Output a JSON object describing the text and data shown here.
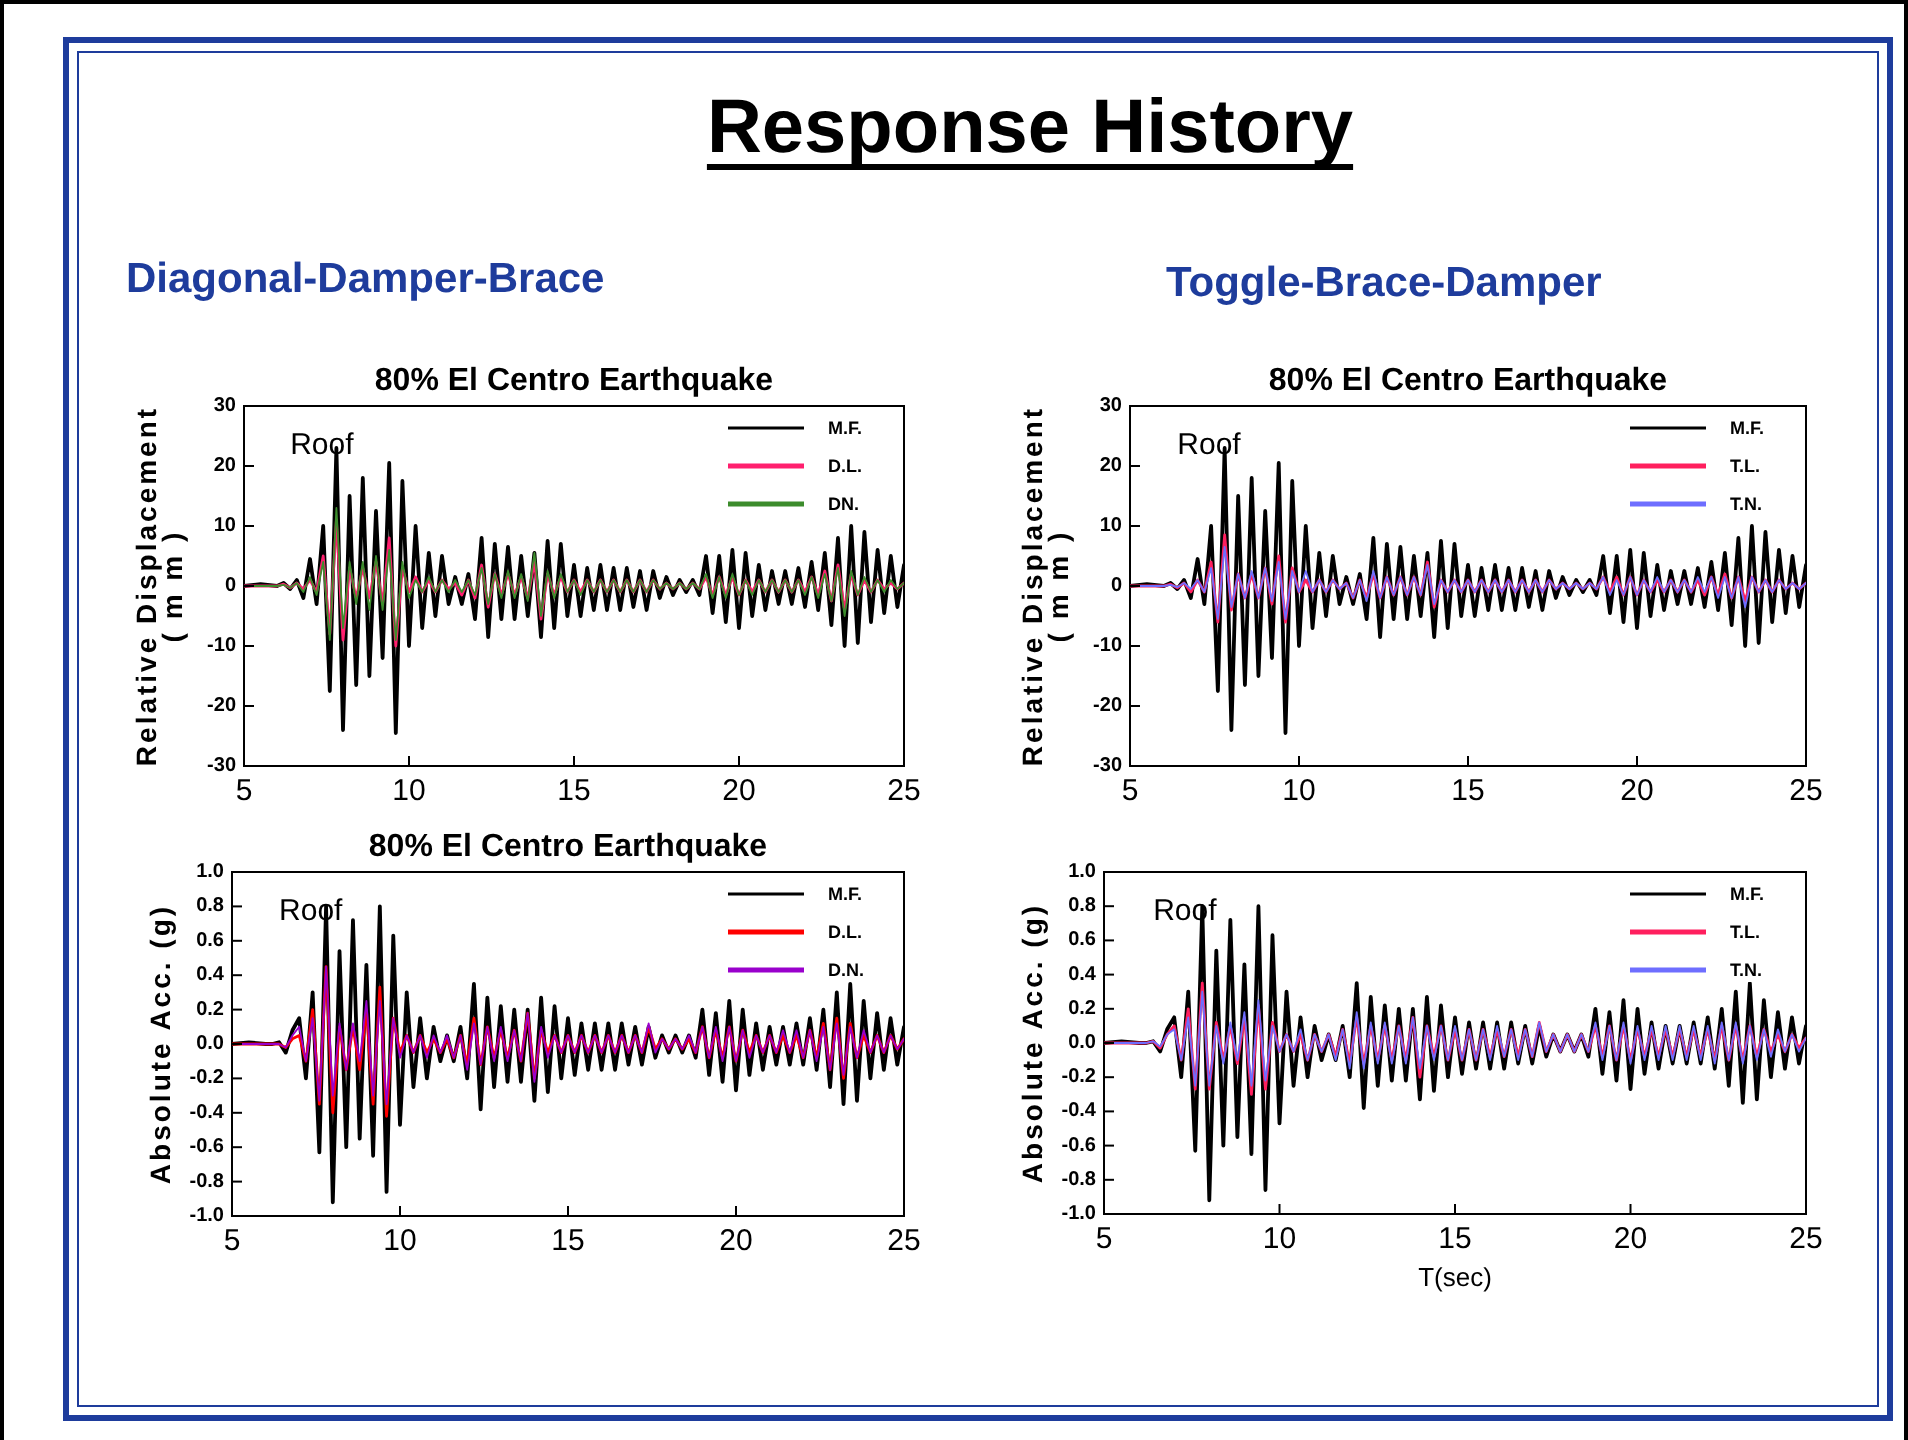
{
  "chart_data": [
    {
      "type": "other",
      "title": "Response History",
      "annotations": [
        "Diagonal-Damper-Brace",
        "Toggle-Brace-Damper"
      ]
    },
    {
      "type": "line",
      "title": "80% El Centro Earthquake",
      "ylabel": "Relative Displacement\n( m m )",
      "annotations": [
        "Roof"
      ],
      "legend": "top right",
      "xlim": [
        5,
        25
      ],
      "xticks": [
        5,
        10,
        15,
        20,
        25
      ],
      "ylim": [
        -30,
        30
      ],
      "yticks": [
        -30,
        -20,
        -10,
        0,
        10,
        20,
        30
      ],
      "x": [
        5,
        5.5,
        6,
        6.2,
        6.4,
        6.6,
        6.8,
        7,
        7.2,
        7.4,
        7.6,
        7.8,
        8,
        8.2,
        8.4,
        8.6,
        8.8,
        9,
        9.2,
        9.4,
        9.6,
        9.8,
        10,
        10.2,
        10.4,
        10.6,
        10.8,
        11,
        11.2,
        11.4,
        11.6,
        11.8,
        12,
        12.2,
        12.4,
        12.6,
        12.8,
        13,
        13.2,
        13.4,
        13.6,
        13.8,
        14,
        14.2,
        14.4,
        14.6,
        14.8,
        15,
        15.2,
        15.4,
        15.6,
        15.8,
        16,
        16.2,
        16.4,
        16.6,
        16.8,
        17,
        17.2,
        17.4,
        17.6,
        17.8,
        18,
        18.2,
        18.4,
        18.6,
        18.8,
        19,
        19.2,
        19.4,
        19.6,
        19.8,
        20,
        20.2,
        20.4,
        20.6,
        20.8,
        21,
        21.2,
        21.4,
        21.6,
        21.8,
        22,
        22.2,
        22.4,
        22.6,
        22.8,
        23,
        23.2,
        23.4,
        23.6,
        23.8,
        24,
        24.2,
        24.4,
        24.6,
        24.8,
        25
      ],
      "series": [
        {
          "name": "M.F.",
          "color": "#000000",
          "values": [
            0,
            0.3,
            0,
            0.5,
            -0.5,
            1,
            -2,
            4.5,
            -3,
            10,
            -17.5,
            23,
            -24,
            15,
            -16.5,
            18,
            -15,
            12.5,
            -12,
            20.5,
            -24.5,
            17.5,
            -10,
            10,
            -7,
            5.5,
            -5,
            5,
            -3,
            1.5,
            -3,
            2,
            -5.5,
            8,
            -8.5,
            7,
            -5.5,
            6.5,
            -5.5,
            5,
            -5,
            5.5,
            -8.5,
            7.5,
            -7,
            7,
            -5,
            3.5,
            -5,
            3,
            -4,
            3.5,
            -4,
            3,
            -4,
            3,
            -3.5,
            2.5,
            -4,
            2.5,
            -2,
            1.5,
            -1.5,
            1,
            -1,
            1,
            -1.5,
            5,
            -4.5,
            5,
            -6,
            6,
            -7,
            5.5,
            -5,
            3.5,
            -4,
            2.5,
            -3,
            2.5,
            -3,
            3,
            -3.5,
            4,
            -4,
            5.5,
            -6.5,
            8,
            -10,
            10,
            -9.5,
            9,
            -6,
            6,
            -4.5,
            5,
            -3.5,
            3.5
          ]
        },
        {
          "name": "D.L.",
          "color": "#ff1f6e",
          "values": [
            0,
            0,
            0,
            0.3,
            -0.3,
            0.5,
            -0.5,
            1,
            -1,
            5,
            -8,
            11,
            -9,
            3,
            -2,
            3,
            -2,
            4,
            -3,
            8,
            -10,
            3,
            -1,
            1.5,
            -1,
            1,
            -1,
            1,
            -0.5,
            0.5,
            -1.5,
            1,
            -2,
            3.5,
            -3.5,
            2,
            -1.5,
            2,
            -1.5,
            1.5,
            -2,
            4,
            -5.5,
            2,
            -1.5,
            1.5,
            -1,
            1,
            -1,
            1,
            -1,
            1,
            -1,
            1,
            -1,
            1,
            -1,
            1,
            -1,
            1,
            -0.5,
            0.5,
            -0.5,
            0.5,
            -0.5,
            0.5,
            -0.5,
            1.5,
            -1.5,
            1.5,
            -1.5,
            1.5,
            -1.5,
            1,
            -1,
            1,
            -1,
            1,
            -1,
            1,
            -1,
            1,
            -1,
            1.5,
            -1.5,
            2.5,
            -2.5,
            3.5,
            -4,
            2,
            -1.5,
            1,
            -1,
            1,
            -0.5,
            0.5,
            -0.5,
            0.5
          ]
        },
        {
          "name": "DN.",
          "color": "#3c8c2c",
          "values": [
            0,
            0,
            0,
            0.2,
            -0.3,
            0.5,
            -1,
            1.5,
            -1.5,
            4,
            -9,
            13,
            -7,
            4,
            -3,
            4,
            -4,
            5,
            -4,
            6,
            -9,
            4,
            -2,
            1,
            -1,
            1.5,
            -1,
            1,
            -1,
            1,
            -1,
            1,
            -1.5,
            3,
            -3,
            2,
            -2,
            2.5,
            -2,
            2,
            -2.5,
            5.5,
            -5,
            2.5,
            -2,
            2,
            -1,
            1,
            -1.5,
            1,
            -1,
            1,
            -1,
            1,
            -1,
            1,
            -1,
            1,
            -1,
            1,
            -0.5,
            0.5,
            -0.5,
            0.5,
            -0.5,
            0.5,
            -0.5,
            2,
            -2,
            1.5,
            -2,
            2,
            -1.5,
            1,
            -1.5,
            1,
            -1,
            1,
            -1,
            1,
            -1,
            1,
            -1.5,
            1.5,
            -2,
            2,
            -2.5,
            3,
            -5,
            2.5,
            -1.5,
            1.5,
            -1,
            1,
            -1,
            1,
            -0.5,
            0.5
          ]
        }
      ]
    },
    {
      "type": "line",
      "title": "80% El Centro Earthquake",
      "ylabel": "Relative Displacement\n( m m )",
      "annotations": [
        "Roof"
      ],
      "legend": "top right",
      "xlim": [
        5,
        25
      ],
      "xticks": [
        5,
        10,
        15,
        20,
        25
      ],
      "ylim": [
        -30,
        30
      ],
      "yticks": [
        -30,
        -20,
        -10,
        0,
        10,
        20,
        30
      ],
      "x": [
        5,
        5.5,
        6,
        6.2,
        6.4,
        6.6,
        6.8,
        7,
        7.2,
        7.4,
        7.6,
        7.8,
        8,
        8.2,
        8.4,
        8.6,
        8.8,
        9,
        9.2,
        9.4,
        9.6,
        9.8,
        10,
        10.2,
        10.4,
        10.6,
        10.8,
        11,
        11.2,
        11.4,
        11.6,
        11.8,
        12,
        12.2,
        12.4,
        12.6,
        12.8,
        13,
        13.2,
        13.4,
        13.6,
        13.8,
        14,
        14.2,
        14.4,
        14.6,
        14.8,
        15,
        15.2,
        15.4,
        15.6,
        15.8,
        16,
        16.2,
        16.4,
        16.6,
        16.8,
        17,
        17.2,
        17.4,
        17.6,
        17.8,
        18,
        18.2,
        18.4,
        18.6,
        18.8,
        19,
        19.2,
        19.4,
        19.6,
        19.8,
        20,
        20.2,
        20.4,
        20.6,
        20.8,
        21,
        21.2,
        21.4,
        21.6,
        21.8,
        22,
        22.2,
        22.4,
        22.6,
        22.8,
        23,
        23.2,
        23.4,
        23.6,
        23.8,
        24,
        24.2,
        24.4,
        24.6,
        24.8,
        25
      ],
      "series": [
        {
          "name": "M.F.",
          "color": "#000000",
          "values": [
            0,
            0.3,
            0,
            0.5,
            -0.5,
            1,
            -2,
            4.5,
            -3,
            10,
            -17.5,
            23,
            -24,
            15,
            -16.5,
            18,
            -15,
            12.5,
            -12,
            20.5,
            -24.5,
            17.5,
            -10,
            10,
            -7,
            5.5,
            -5,
            5,
            -3,
            1.5,
            -3,
            2,
            -5.5,
            8,
            -8.5,
            7,
            -5.5,
            6.5,
            -5.5,
            5,
            -5,
            5.5,
            -8.5,
            7.5,
            -7,
            7,
            -5,
            3.5,
            -5,
            3,
            -4,
            3.5,
            -4,
            3,
            -4,
            3,
            -3.5,
            2.5,
            -4,
            2.5,
            -2,
            1.5,
            -1.5,
            1,
            -1,
            1,
            -1.5,
            5,
            -4.5,
            5,
            -6,
            6,
            -7,
            5.5,
            -5,
            3.5,
            -4,
            2.5,
            -3,
            2.5,
            -3,
            3,
            -3.5,
            4,
            -4,
            5.5,
            -6.5,
            8,
            -10,
            10,
            -9.5,
            9,
            -6,
            6,
            -4.5,
            5,
            -3.5,
            3.5
          ]
        },
        {
          "name": "T.L.",
          "color": "#ff1f5e",
          "values": [
            0,
            0,
            0,
            0.3,
            -0.3,
            0.5,
            -1,
            1,
            -1,
            4,
            -6,
            8.5,
            -4,
            2,
            -2,
            2,
            -2,
            3,
            -3,
            5,
            -6,
            3,
            -1,
            1,
            -1,
            1,
            -1,
            1,
            -0.5,
            0.5,
            -2,
            1,
            -2,
            2,
            -2,
            1.5,
            -1.5,
            1.5,
            -1.5,
            1.5,
            -1.5,
            4,
            -3.5,
            1,
            -1,
            1,
            -1,
            1,
            -1,
            1,
            -1,
            1,
            -1,
            1,
            -1,
            1,
            -1,
            1,
            -1,
            1,
            -0.5,
            0.5,
            -0.5,
            0.5,
            -0.5,
            0.5,
            -0.5,
            1.5,
            -1,
            1.5,
            -1.5,
            1.5,
            -1.5,
            1,
            -1,
            1,
            -1,
            1,
            -1,
            1,
            -1,
            1,
            -1.5,
            1.5,
            -1.5,
            2,
            -2,
            1.5,
            -2.5,
            1.5,
            -1,
            1,
            -1,
            1,
            -0.5,
            0.5,
            -0.5,
            0.5
          ]
        },
        {
          "name": "T.N.",
          "color": "#6e6eff",
          "values": [
            0,
            0,
            0,
            0.2,
            -0.2,
            0.5,
            -0.5,
            1,
            -1,
            3,
            -5.5,
            6.5,
            -3.5,
            2,
            -2,
            2.5,
            -2,
            3,
            -2.5,
            4,
            -5.5,
            2.5,
            -1,
            2.5,
            -1,
            1,
            -1,
            1,
            -0.5,
            0.5,
            -2,
            1,
            -2.5,
            2.5,
            -2,
            1.5,
            -1.5,
            1.5,
            -1.5,
            1.5,
            -1.5,
            3.5,
            -3,
            1,
            -1,
            1,
            -1,
            1,
            -1,
            1,
            -1,
            1,
            -1,
            1,
            -1,
            1,
            -1,
            1,
            -1,
            1,
            -0.5,
            0.5,
            -0.5,
            0.5,
            -0.5,
            0.5,
            -0.5,
            1.5,
            -1.5,
            1,
            -1.5,
            1.5,
            -1.5,
            1,
            -1,
            1.5,
            -1,
            1,
            -1,
            1,
            -1,
            1.5,
            -1,
            1.5,
            -2,
            1.5,
            -2,
            1.5,
            -3.5,
            1.5,
            -1,
            1,
            -1,
            1,
            -0.5,
            0.5,
            -0.5,
            0.5
          ]
        }
      ]
    },
    {
      "type": "line",
      "title": "80% El Centro Earthquake",
      "ylabel": "Absolute Acc. (g)",
      "annotations": [
        "Roof"
      ],
      "legend": "top right",
      "xlim": [
        5,
        25
      ],
      "xticks": [
        5,
        10,
        15,
        20,
        25
      ],
      "ylim": [
        -1,
        1
      ],
      "yticks": [
        {
          "value": -1,
          "label": "-1.0"
        },
        -0.8,
        -0.6,
        -0.4,
        -0.2,
        {
          "value": 0,
          "label": "0.0"
        },
        0.2,
        0.4,
        0.6,
        0.8,
        {
          "value": 1,
          "label": "1.0"
        }
      ],
      "x": [
        5,
        5.5,
        6,
        6.2,
        6.4,
        6.6,
        6.8,
        7,
        7.2,
        7.4,
        7.6,
        7.8,
        8,
        8.2,
        8.4,
        8.6,
        8.8,
        9,
        9.2,
        9.4,
        9.6,
        9.8,
        10,
        10.2,
        10.4,
        10.6,
        10.8,
        11,
        11.2,
        11.4,
        11.6,
        11.8,
        12,
        12.2,
        12.4,
        12.6,
        12.8,
        13,
        13.2,
        13.4,
        13.6,
        13.8,
        14,
        14.2,
        14.4,
        14.6,
        14.8,
        15,
        15.2,
        15.4,
        15.6,
        15.8,
        16,
        16.2,
        16.4,
        16.6,
        16.8,
        17,
        17.2,
        17.4,
        17.6,
        17.8,
        18,
        18.2,
        18.4,
        18.6,
        18.8,
        19,
        19.2,
        19.4,
        19.6,
        19.8,
        20,
        20.2,
        20.4,
        20.6,
        20.8,
        21,
        21.2,
        21.4,
        21.6,
        21.8,
        22,
        22.2,
        22.4,
        22.6,
        22.8,
        23,
        23.2,
        23.4,
        23.6,
        23.8,
        24,
        24.2,
        24.4,
        24.6,
        24.8,
        25
      ],
      "series": [
        {
          "name": "M.F.",
          "color": "#000000",
          "values": [
            0,
            0.01,
            0,
            0,
            0.01,
            -0.05,
            0.08,
            0.15,
            -0.2,
            0.3,
            -0.63,
            0.8,
            -0.92,
            0.54,
            -0.6,
            0.72,
            -0.55,
            0.46,
            -0.65,
            0.8,
            -0.86,
            0.63,
            -0.47,
            0.3,
            -0.25,
            0.15,
            -0.2,
            0.1,
            -0.1,
            0.05,
            -0.1,
            0.1,
            -0.2,
            0.35,
            -0.38,
            0.27,
            -0.25,
            0.22,
            -0.22,
            0.2,
            -0.22,
            0.2,
            -0.33,
            0.27,
            -0.28,
            0.22,
            -0.2,
            0.15,
            -0.18,
            0.12,
            -0.15,
            0.12,
            -0.15,
            0.12,
            -0.15,
            0.12,
            -0.12,
            0.1,
            -0.12,
            0.1,
            -0.08,
            0.05,
            -0.05,
            0.05,
            -0.05,
            0.05,
            -0.08,
            0.2,
            -0.18,
            0.18,
            -0.22,
            0.25,
            -0.27,
            0.2,
            -0.18,
            0.12,
            -0.15,
            0.1,
            -0.12,
            0.1,
            -0.12,
            0.12,
            -0.12,
            0.15,
            -0.15,
            0.2,
            -0.25,
            0.3,
            -0.35,
            0.35,
            -0.33,
            0.25,
            -0.2,
            0.18,
            -0.15,
            0.15,
            -0.12,
            0.1
          ]
        },
        {
          "name": "D.L.",
          "color": "#ff0000",
          "values": [
            0,
            0,
            0,
            0,
            0,
            -0.02,
            0.03,
            0.05,
            -0.1,
            0.2,
            -0.35,
            0.45,
            -0.4,
            0.1,
            -0.15,
            0.1,
            -0.15,
            0.2,
            -0.35,
            0.33,
            -0.42,
            0.15,
            -0.05,
            0.05,
            -0.05,
            0.05,
            -0.05,
            0.03,
            -0.05,
            0.03,
            -0.08,
            0.05,
            -0.12,
            0.15,
            -0.12,
            0.1,
            -0.08,
            0.08,
            -0.08,
            0.08,
            -0.1,
            0.18,
            -0.2,
            0.08,
            -0.05,
            0.05,
            -0.05,
            0.05,
            -0.05,
            0.05,
            -0.05,
            0.05,
            -0.05,
            0.05,
            -0.05,
            0.05,
            -0.05,
            0.05,
            -0.05,
            0.1,
            -0.03,
            0.03,
            -0.03,
            0.03,
            -0.03,
            0.03,
            -0.05,
            0.1,
            -0.08,
            0.08,
            -0.08,
            0.1,
            -0.1,
            0.08,
            -0.05,
            0.05,
            -0.05,
            0.05,
            -0.05,
            0.05,
            -0.05,
            0.05,
            -0.08,
            0.08,
            -0.08,
            0.12,
            -0.15,
            0.15,
            -0.2,
            0.12,
            -0.08,
            0.05,
            -0.05,
            0.05,
            -0.05,
            0.05,
            -0.03,
            0.03
          ]
        },
        {
          "name": "D.N.",
          "color": "#9900cc",
          "values": [
            0,
            0,
            0,
            0,
            0,
            -0.02,
            0.05,
            0.1,
            -0.1,
            0.15,
            -0.33,
            0.45,
            -0.3,
            0.12,
            -0.15,
            0.12,
            -0.1,
            0.25,
            -0.3,
            0.25,
            -0.35,
            0.15,
            -0.08,
            0.05,
            -0.05,
            0.05,
            -0.08,
            0.05,
            -0.05,
            0.05,
            -0.08,
            0.05,
            -0.15,
            0.12,
            -0.12,
            0.1,
            -0.1,
            0.1,
            -0.1,
            0.08,
            -0.1,
            0.18,
            -0.22,
            0.1,
            -0.08,
            0.05,
            -0.05,
            0.05,
            -0.05,
            0.05,
            -0.05,
            0.05,
            -0.05,
            0.05,
            -0.05,
            0.05,
            -0.05,
            0.05,
            -0.05,
            0.12,
            -0.05,
            0.03,
            -0.03,
            0.03,
            -0.03,
            0.05,
            -0.05,
            0.1,
            -0.08,
            0.1,
            -0.1,
            0.1,
            -0.1,
            0.08,
            -0.08,
            0.05,
            -0.05,
            0.05,
            -0.05,
            0.08,
            -0.05,
            0.08,
            -0.08,
            0.08,
            -0.1,
            0.1,
            -0.15,
            0.12,
            -0.18,
            0.1,
            -0.08,
            0.08,
            -0.05,
            0.05,
            -0.05,
            0.05,
            -0.03,
            0.03
          ]
        }
      ]
    },
    {
      "type": "line",
      "xlabel": "T(sec)",
      "ylabel": "Absolute Acc. (g)",
      "annotations": [
        "Roof"
      ],
      "legend": "top right",
      "xlim": [
        5,
        25
      ],
      "xticks": [
        5,
        10,
        15,
        20,
        25
      ],
      "ylim": [
        -1,
        1
      ],
      "yticks": [
        {
          "value": -1,
          "label": "-1.0"
        },
        -0.8,
        -0.6,
        -0.4,
        -0.2,
        {
          "value": 0,
          "label": "0.0"
        },
        0.2,
        0.4,
        0.6,
        0.8,
        {
          "value": 1,
          "label": "1.0"
        }
      ],
      "x": [
        5,
        5.5,
        6,
        6.2,
        6.4,
        6.6,
        6.8,
        7,
        7.2,
        7.4,
        7.6,
        7.8,
        8,
        8.2,
        8.4,
        8.6,
        8.8,
        9,
        9.2,
        9.4,
        9.6,
        9.8,
        10,
        10.2,
        10.4,
        10.6,
        10.8,
        11,
        11.2,
        11.4,
        11.6,
        11.8,
        12,
        12.2,
        12.4,
        12.6,
        12.8,
        13,
        13.2,
        13.4,
        13.6,
        13.8,
        14,
        14.2,
        14.4,
        14.6,
        14.8,
        15,
        15.2,
        15.4,
        15.6,
        15.8,
        16,
        16.2,
        16.4,
        16.6,
        16.8,
        17,
        17.2,
        17.4,
        17.6,
        17.8,
        18,
        18.2,
        18.4,
        18.6,
        18.8,
        19,
        19.2,
        19.4,
        19.6,
        19.8,
        20,
        20.2,
        20.4,
        20.6,
        20.8,
        21,
        21.2,
        21.4,
        21.6,
        21.8,
        22,
        22.2,
        22.4,
        22.6,
        22.8,
        23,
        23.2,
        23.4,
        23.6,
        23.8,
        24,
        24.2,
        24.4,
        24.6,
        24.8,
        25
      ],
      "series": [
        {
          "name": "M.F.",
          "color": "#000000",
          "values": [
            0,
            0.01,
            0,
            0,
            0.01,
            -0.05,
            0.08,
            0.15,
            -0.2,
            0.3,
            -0.63,
            0.8,
            -0.92,
            0.54,
            -0.6,
            0.72,
            -0.55,
            0.46,
            -0.65,
            0.8,
            -0.86,
            0.63,
            -0.47,
            0.3,
            -0.25,
            0.15,
            -0.2,
            0.1,
            -0.1,
            0.05,
            -0.1,
            0.1,
            -0.2,
            0.35,
            -0.38,
            0.27,
            -0.25,
            0.22,
            -0.22,
            0.2,
            -0.22,
            0.2,
            -0.33,
            0.27,
            -0.28,
            0.22,
            -0.2,
            0.15,
            -0.18,
            0.12,
            -0.15,
            0.12,
            -0.15,
            0.12,
            -0.15,
            0.12,
            -0.12,
            0.1,
            -0.12,
            0.1,
            -0.08,
            0.05,
            -0.05,
            0.05,
            -0.05,
            0.05,
            -0.08,
            0.2,
            -0.18,
            0.18,
            -0.22,
            0.25,
            -0.27,
            0.2,
            -0.18,
            0.12,
            -0.15,
            0.1,
            -0.12,
            0.1,
            -0.12,
            0.12,
            -0.12,
            0.15,
            -0.15,
            0.2,
            -0.25,
            0.3,
            -0.35,
            0.35,
            -0.33,
            0.25,
            -0.2,
            0.18,
            -0.15,
            0.15,
            -0.12,
            0.1
          ]
        },
        {
          "name": "T.L.",
          "color": "#ff1f5e",
          "values": [
            0,
            0,
            0,
            0,
            0.01,
            -0.03,
            0.05,
            0.1,
            -0.1,
            0.2,
            -0.27,
            0.35,
            -0.27,
            0.12,
            -0.1,
            0.1,
            -0.12,
            0.15,
            -0.3,
            0.22,
            -0.27,
            0.12,
            -0.05,
            0.05,
            -0.05,
            0.05,
            -0.1,
            0.05,
            -0.05,
            0.05,
            -0.08,
            0.08,
            -0.12,
            0.15,
            -0.12,
            0.1,
            -0.1,
            0.1,
            -0.1,
            0.1,
            -0.1,
            0.15,
            -0.2,
            0.1,
            -0.08,
            0.1,
            -0.1,
            0.08,
            -0.1,
            0.08,
            -0.1,
            0.08,
            -0.08,
            0.08,
            -0.08,
            0.08,
            -0.08,
            0.08,
            -0.08,
            0.12,
            -0.05,
            0.05,
            -0.05,
            0.05,
            -0.05,
            0.05,
            -0.05,
            0.1,
            -0.08,
            0.1,
            -0.1,
            0.1,
            -0.1,
            0.08,
            -0.08,
            0.08,
            -0.08,
            0.08,
            -0.08,
            0.08,
            -0.08,
            0.08,
            -0.08,
            0.08,
            -0.1,
            0.1,
            -0.1,
            0.1,
            -0.1,
            0.1,
            -0.08,
            0.08,
            -0.05,
            0.05,
            -0.05,
            0.05,
            -0.03,
            0.03
          ]
        },
        {
          "name": "T.N.",
          "color": "#6e6eff",
          "values": [
            0,
            0,
            0,
            0,
            0.01,
            -0.02,
            0.05,
            0.08,
            -0.1,
            0.15,
            -0.25,
            0.3,
            -0.25,
            0.1,
            -0.12,
            0.12,
            -0.1,
            0.18,
            -0.25,
            0.25,
            -0.22,
            0.1,
            -0.05,
            0.05,
            -0.05,
            0.08,
            -0.1,
            0.05,
            -0.05,
            0.05,
            -0.1,
            0.08,
            -0.15,
            0.18,
            -0.15,
            0.12,
            -0.12,
            0.12,
            -0.12,
            0.1,
            -0.12,
            0.15,
            -0.15,
            0.1,
            -0.1,
            0.1,
            -0.1,
            0.1,
            -0.1,
            0.08,
            -0.1,
            0.08,
            -0.1,
            0.1,
            -0.08,
            0.08,
            -0.1,
            0.08,
            -0.08,
            0.12,
            -0.05,
            0.05,
            -0.05,
            0.05,
            -0.05,
            0.05,
            -0.05,
            0.12,
            -0.1,
            0.1,
            -0.1,
            0.12,
            -0.12,
            0.1,
            -0.1,
            0.1,
            -0.1,
            0.1,
            -0.1,
            0.1,
            -0.1,
            0.1,
            -0.1,
            0.1,
            -0.12,
            0.12,
            -0.1,
            0.12,
            -0.12,
            0.1,
            -0.1,
            0.08,
            -0.08,
            0.08,
            -0.05,
            0.05,
            -0.05,
            0.03
          ]
        }
      ]
    }
  ]
}
